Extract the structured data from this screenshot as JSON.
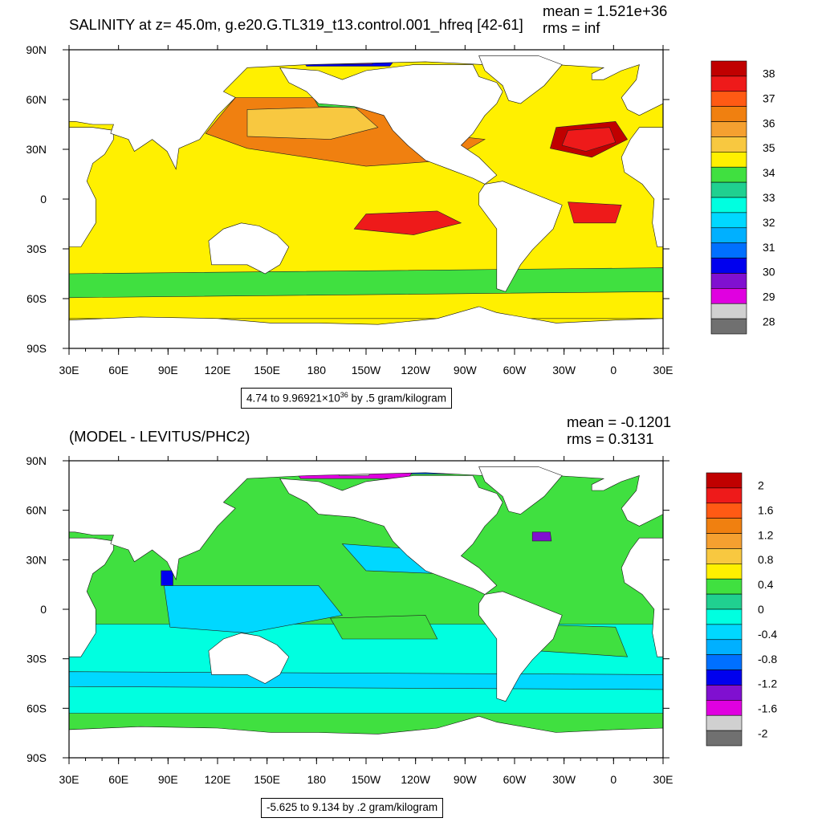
{
  "chart_data": [
    {
      "type": "heatmap",
      "title": "SALINITY at z=  45.0m, g.e20.G.TL319_t13.control.001_hfreq [42-61]",
      "stats": {
        "mean": "mean = 1.521e+36",
        "rms": "rms = inf"
      },
      "xticks": [
        "30E",
        "60E",
        "90E",
        "120E",
        "150E",
        "180",
        "150W",
        "120W",
        "90W",
        "60W",
        "30W",
        "0",
        "30E"
      ],
      "yticks": [
        "90N",
        "60N",
        "30N",
        "0",
        "30S",
        "60S",
        "90S"
      ],
      "xlim": [
        "30E",
        "30E"
      ],
      "ylim": [
        "90S",
        "90N"
      ],
      "colorbar": {
        "labels": [
          "38",
          "37",
          "36",
          "35",
          "34",
          "33",
          "32",
          "31",
          "30",
          "29",
          "28"
        ],
        "colors": [
          "#c00000",
          "#ee1a1a",
          "#ff5a14",
          "#f08010",
          "#f5a030",
          "#f8c840",
          "#fff000",
          "#40e040",
          "#20d090",
          "#00ffe0",
          "#00d8ff",
          "#00b0ff",
          "#0070ff",
          "#0000ee",
          "#8010d0",
          "#e000e0",
          "#d0d0d0",
          "#707070"
        ]
      },
      "contour_info": {
        "pre": "4.74 to 9.96921×10",
        "exp": "36",
        "post": " by .5 gram/kilogram"
      }
    },
    {
      "type": "heatmap",
      "title": "(MODEL - LEVITUS/PHC2)",
      "stats": {
        "mean": "mean = -0.1201",
        "rms": "rms = 0.3131"
      },
      "xticks": [
        "30E",
        "60E",
        "90E",
        "120E",
        "150E",
        "180",
        "150W",
        "120W",
        "90W",
        "60W",
        "30W",
        "0",
        "30E"
      ],
      "yticks": [
        "90N",
        "60N",
        "30N",
        "0",
        "30S",
        "60S",
        "90S"
      ],
      "xlim": [
        "30E",
        "30E"
      ],
      "ylim": [
        "90S",
        "90N"
      ],
      "colorbar": {
        "labels": [
          "2",
          "1.6",
          "1.2",
          "0.8",
          "0.4",
          "0",
          "-0.4",
          "-0.8",
          "-1.2",
          "-1.6",
          "-2"
        ],
        "colors": [
          "#c00000",
          "#ee1a1a",
          "#ff5a14",
          "#f08010",
          "#f5a030",
          "#f8c840",
          "#fff000",
          "#40e040",
          "#20d090",
          "#00ffe0",
          "#00d8ff",
          "#00b0ff",
          "#0070ff",
          "#0000ee",
          "#8010d0",
          "#e000e0",
          "#d0d0d0",
          "#707070"
        ]
      },
      "contour_info": {
        "pre": "-5.625 to 9.134 by .2 gram/kilogram",
        "exp": "",
        "post": ""
      }
    }
  ],
  "land_color": "#ffffff"
}
